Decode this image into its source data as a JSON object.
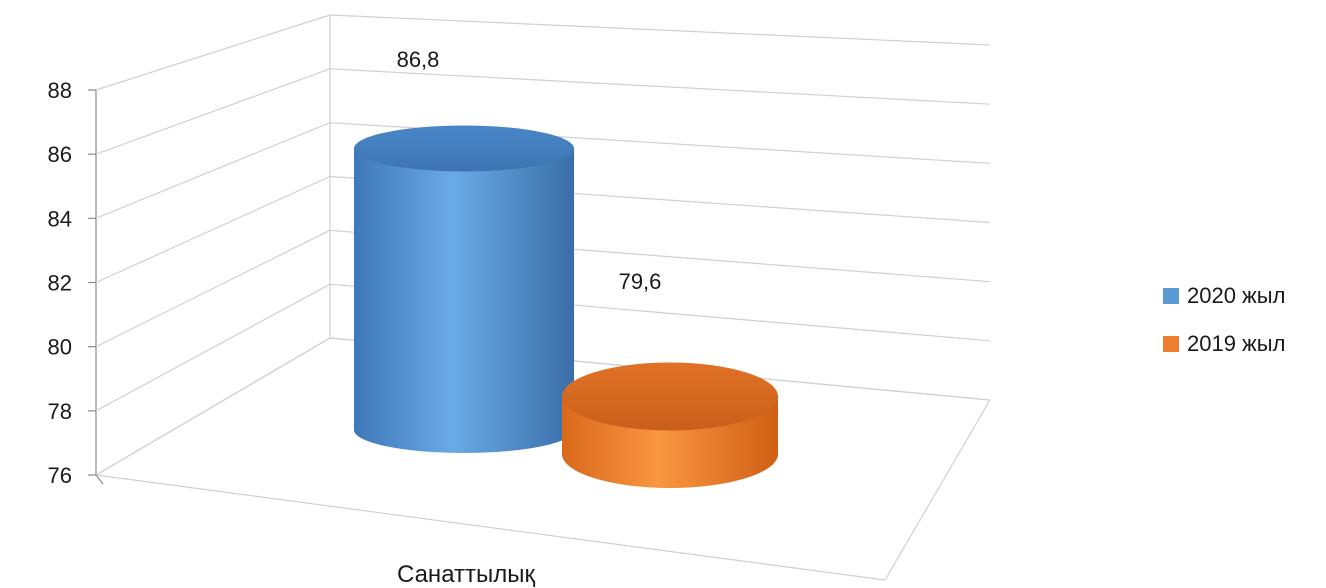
{
  "chart_data": {
    "type": "bar",
    "style": "3d-cylinder",
    "categories": [
      "Санаттылық"
    ],
    "series": [
      {
        "name": "2020 жыл",
        "values": [
          86.8
        ],
        "label": "86,8",
        "color": "#5b9bd5"
      },
      {
        "name": "2019 жыл",
        "values": [
          79.6
        ],
        "label": "79,6",
        "color": "#ed7d31"
      }
    ],
    "yticks": [
      "88",
      "86",
      "84",
      "82",
      "80",
      "78",
      "76"
    ],
    "ylim": [
      76,
      88
    ],
    "grid": true,
    "legend_position": "right"
  }
}
